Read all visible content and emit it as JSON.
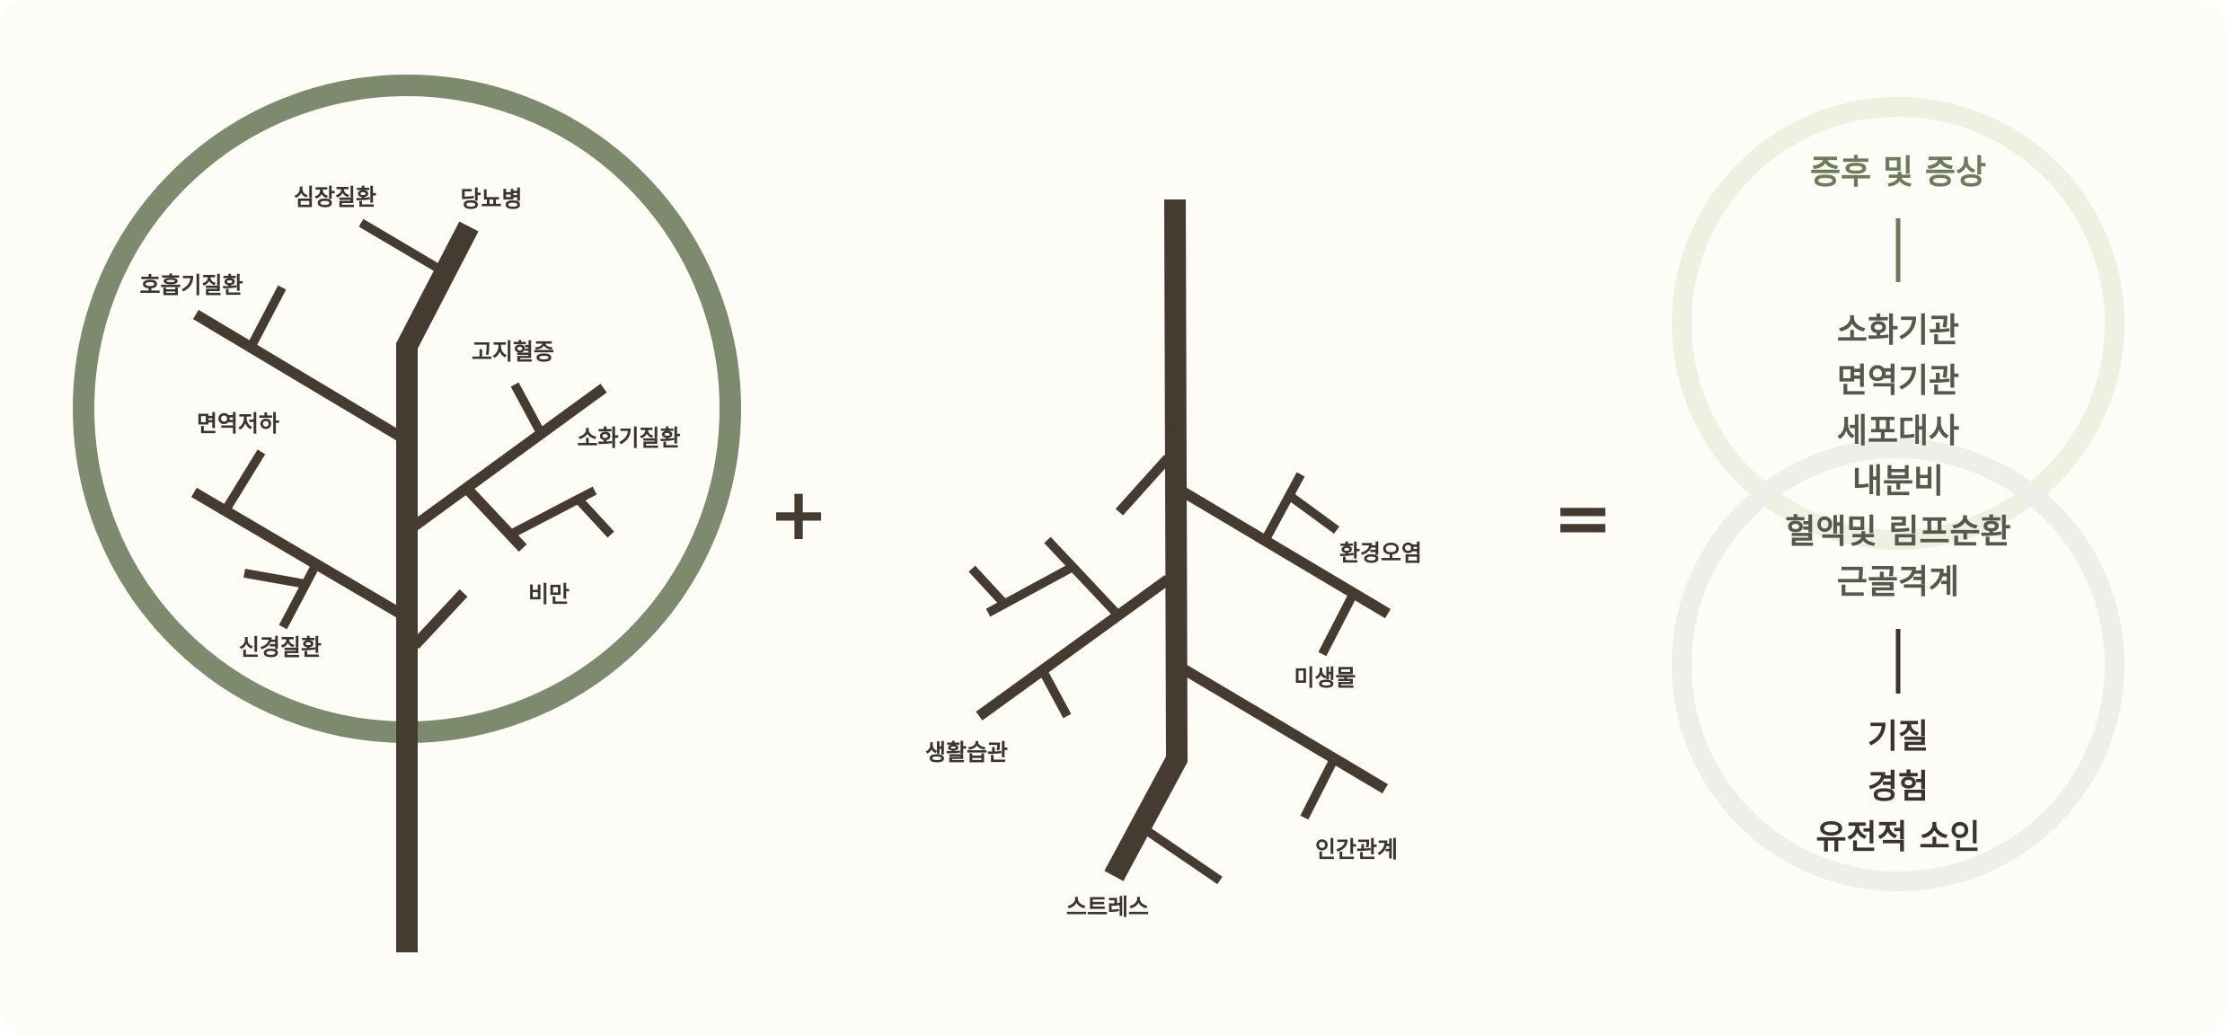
{
  "colors": {
    "background": "#fdfcf6",
    "branch": "#463b31",
    "crown_ring": "#7d8a6d",
    "upper_ring": "#eef1e2",
    "lower_ring": "#eeeeeb",
    "heading_green": "#6d7a5b",
    "mid_text": "#55594c",
    "dark_text": "#3a342e"
  },
  "tree": {
    "labels": {
      "heart": "심장질환",
      "diabetes": "당뇨병",
      "respiratory": "호흡기질환",
      "hyperlipidemia": "고지혈증",
      "immune_deficiency": "면역저하",
      "digestive": "소화기질환",
      "obesity": "비만",
      "neurological": "신경질환"
    }
  },
  "roots": {
    "labels": {
      "pollution": "환경오염",
      "microbes": "미생물",
      "lifestyle": "생활습관",
      "relationships": "인간관계",
      "stress": "스트레스"
    }
  },
  "operators": {
    "plus": "+",
    "equals": "="
  },
  "summary": {
    "heading": "증후 및 증상",
    "systems": [
      "소화기관",
      "면역기관",
      "세포대사",
      "내분비",
      "혈액및 림프순환",
      "근골격계"
    ],
    "causes": [
      "기질",
      "경험",
      "유전적 소인"
    ]
  }
}
